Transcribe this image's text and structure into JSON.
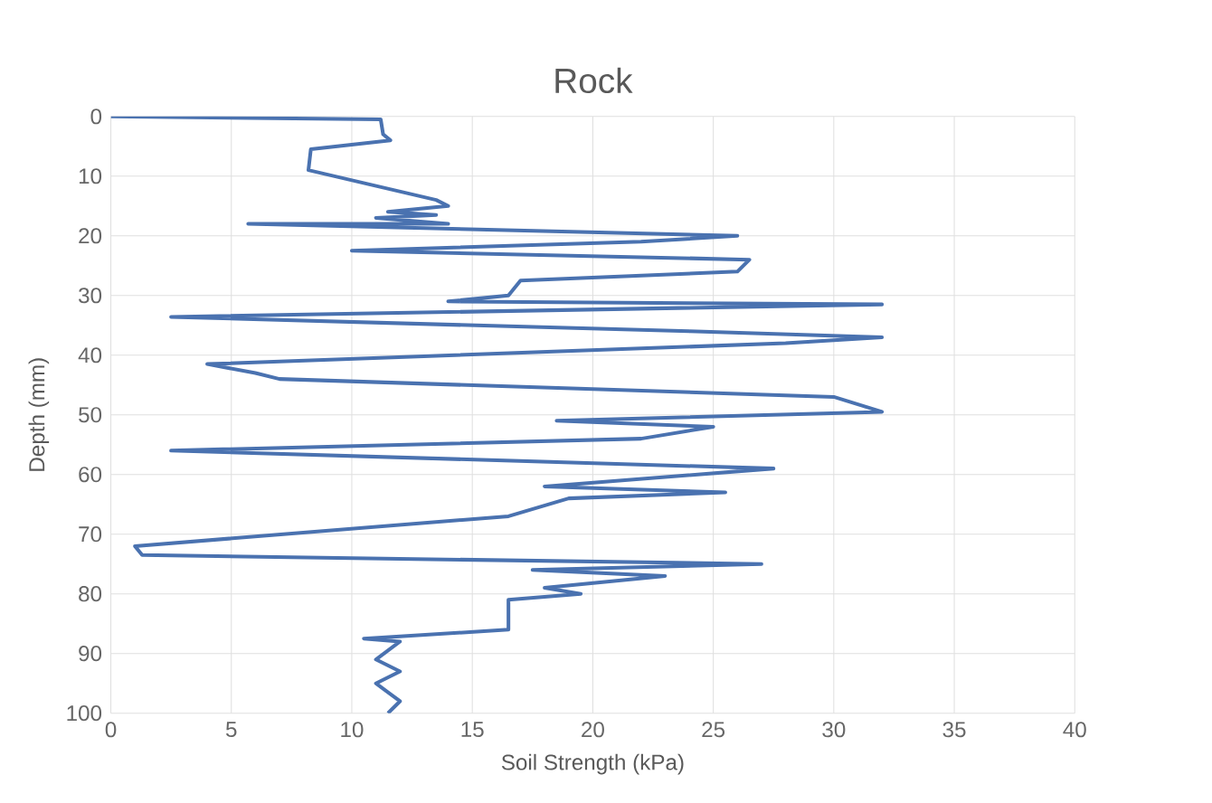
{
  "chart_data": {
    "type": "line",
    "title": "Rock",
    "xlabel": "Soil Strength (kPa)",
    "ylabel": "Depth (mm)",
    "xlim": [
      0,
      40
    ],
    "xticks": [
      0,
      5,
      10,
      15,
      20,
      25,
      30,
      35,
      40
    ],
    "ylim": [
      100,
      0
    ],
    "yticks": [
      0,
      10,
      20,
      30,
      40,
      50,
      60,
      70,
      80,
      90,
      100
    ],
    "grid": true,
    "marker": "none",
    "line_style": "solid",
    "series": [
      {
        "color": "#4a72b0",
        "x": [
          0,
          11.2,
          11.3,
          11.6,
          8.3,
          8.2,
          13.5,
          14,
          11.5,
          13.5,
          11,
          14,
          5.7,
          26,
          22,
          10,
          26.5,
          26,
          17,
          16.5,
          14,
          32,
          2.5,
          24,
          32,
          28,
          4,
          6,
          7,
          30,
          32,
          18.5,
          25,
          22,
          2.5,
          27.5,
          18,
          25.5,
          19,
          16.5,
          1,
          1.3,
          27,
          17.5,
          23,
          18,
          19.5,
          16.5,
          16.5,
          10.5,
          12,
          11,
          12,
          11,
          12,
          11.5
        ],
        "values": [
          0,
          0.5,
          3,
          4,
          5.5,
          9,
          14,
          15,
          16,
          16.5,
          17,
          18,
          18,
          20,
          21,
          22.5,
          24,
          26,
          27.5,
          30,
          31,
          31.5,
          33.6,
          36,
          37,
          38,
          41.5,
          43,
          44,
          47,
          49.5,
          51,
          52,
          54,
          56,
          59,
          62,
          63,
          64,
          67,
          72,
          73.5,
          75,
          76,
          77,
          79,
          80,
          81,
          86,
          87.5,
          88,
          91,
          93,
          95,
          98,
          100
        ]
      }
    ]
  }
}
